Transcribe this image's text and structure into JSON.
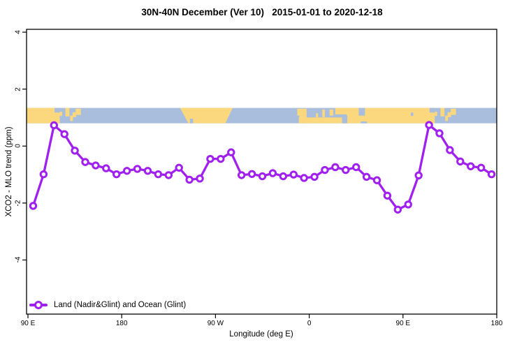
{
  "chart_data": {
    "type": "line",
    "title": "30N-40N December (Ver 10)   2015-01-01 to 2020-12-18",
    "xlabel": "Longitude (deg E)",
    "ylabel": "XCO2 - MLO trend (ppm)",
    "xlim": [
      88.65,
      540
    ],
    "ylim": [
      -5.9,
      4.1
    ],
    "grid": false,
    "x_ticks": [
      {
        "lon": 90,
        "label": "90 E"
      },
      {
        "lon": 180,
        "label": "180"
      },
      {
        "lon": 270,
        "label": "90 W"
      },
      {
        "lon": 360,
        "label": "0"
      },
      {
        "lon": 450,
        "label": "90 E"
      },
      {
        "lon": 540,
        "label": "180"
      }
    ],
    "y_ticks": [
      {
        "value": 4,
        "label": "4"
      },
      {
        "value": 2,
        "label": "2"
      },
      {
        "value": 0,
        "label": "0"
      },
      {
        "value": -2,
        "label": "-2"
      },
      {
        "value": -4,
        "label": "-4"
      }
    ],
    "legend": {
      "position": "bottom-left"
    },
    "series": [
      {
        "name": "Land (Nadir&Glint) and Ocean (Glint)",
        "color": "#A020F0",
        "marker": "open-circle",
        "x": [
          95,
          105,
          115,
          125,
          135,
          145,
          155,
          165,
          175,
          185,
          195,
          205,
          215,
          225,
          235,
          245,
          255,
          265,
          275,
          285,
          295,
          305,
          315,
          325,
          335,
          345,
          355,
          365,
          375,
          385,
          395,
          405,
          415,
          425,
          435,
          445,
          455,
          465,
          475,
          485,
          495,
          505,
          515,
          525,
          535
        ],
        "y": [
          -2.1,
          -0.99,
          0.73,
          0.42,
          -0.16,
          -0.56,
          -0.68,
          -0.78,
          -0.99,
          -0.87,
          -0.8,
          -0.87,
          -0.99,
          -1.02,
          -0.76,
          -1.18,
          -1.14,
          -0.45,
          -0.45,
          -0.22,
          -1.02,
          -0.98,
          -1.06,
          -0.95,
          -1.06,
          -1.0,
          -1.12,
          -1.08,
          -0.84,
          -0.74,
          -0.84,
          -0.74,
          -1.08,
          -1.2,
          -1.74,
          -2.23,
          -2.05,
          -1.03,
          0.74,
          0.45,
          -0.14,
          -0.54,
          -0.71,
          -0.76,
          -0.99
        ]
      }
    ],
    "map_band": {
      "description": "world map strip 30N-40N drawn across plot",
      "value_top": 1.34,
      "value_bottom": 0.8,
      "ocean_color": "#A8BEDC",
      "land_color": "#FBD77E",
      "land_rects": [
        [
          88.65,
          120.5,
          0,
          1
        ],
        [
          120.5,
          122.8,
          0.25,
          0.52
        ],
        [
          126,
          129.8,
          0,
          0.55
        ],
        [
          130.5,
          133.2,
          0.5,
          0.85
        ],
        [
          132.8,
          136.2,
          0.28,
          0.6
        ],
        [
          135.8,
          140.8,
          0.05,
          0.45
        ],
        [
          348.5,
          357.5,
          0.05,
          0.5
        ],
        [
          350.5,
          357.5,
          0.5,
          1
        ],
        [
          350,
          396.5,
          0.62,
          1
        ],
        [
          366.5,
          368.5,
          0.35,
          0.62
        ],
        [
          372.5,
          375,
          0.1,
          0.6
        ],
        [
          373.5,
          376.5,
          0.62,
          0.85
        ],
        [
          379.5,
          383,
          0.1,
          0.5
        ],
        [
          385,
          397,
          0,
          0.42
        ],
        [
          396,
          480.5,
          0,
          1
        ],
        [
          480.5,
          482.8,
          0.25,
          0.52
        ],
        [
          486,
          489.8,
          0,
          0.55
        ],
        [
          490.5,
          493.2,
          0.5,
          0.85
        ],
        [
          492.8,
          496.2,
          0.28,
          0.6
        ],
        [
          495.8,
          500.8,
          0.05,
          0.45
        ]
      ],
      "land_polys": [
        [
          [
            236,
            0
          ],
          [
            286.5,
            0
          ],
          [
            279.5,
            1
          ],
          [
            244,
            1
          ]
        ]
      ],
      "water_rects": [
        [
          115.5,
          120.5,
          0,
          0.3
        ],
        [
          245.5,
          248.5,
          0.7,
          1
        ],
        [
          391.5,
          396.5,
          0.48,
          1
        ],
        [
          407.5,
          413.5,
          0,
          0.5
        ],
        [
          409.5,
          415.5,
          0.88,
          1
        ],
        [
          457.5,
          459.8,
          0.3,
          0.52
        ],
        [
          475.5,
          480.5,
          0,
          0.3
        ]
      ]
    }
  }
}
